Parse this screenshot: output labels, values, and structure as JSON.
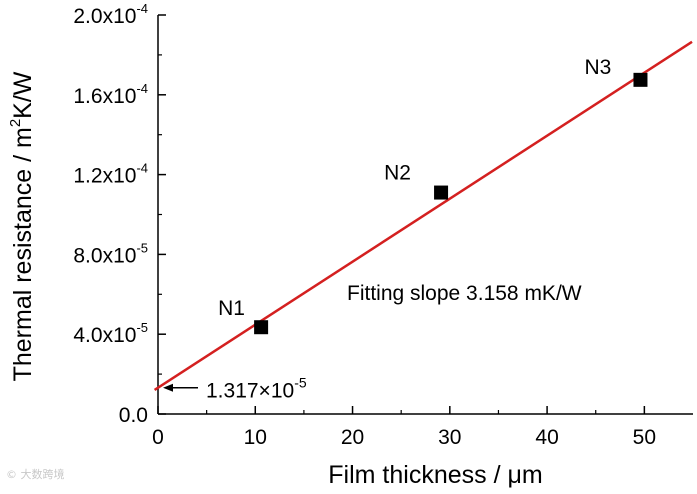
{
  "chart_data": {
    "type": "scatter",
    "xlabel": "Film thickness / μm",
    "ylabel_parts": {
      "prefix": "Thermal resistance / m",
      "sup": "2",
      "suffix": "K/W"
    },
    "xlim": [
      0,
      55
    ],
    "ylim": [
      0,
      0.0002
    ],
    "x_ticks": [
      {
        "value": 0,
        "label": "0"
      },
      {
        "value": 10,
        "label": "10"
      },
      {
        "value": 20,
        "label": "20"
      },
      {
        "value": 30,
        "label": "30"
      },
      {
        "value": 40,
        "label": "40"
      },
      {
        "value": 50,
        "label": "50"
      }
    ],
    "y_ticks": [
      {
        "value": 0,
        "base": "0.0",
        "exp": ""
      },
      {
        "value": 4e-05,
        "base": "4.0x10",
        "exp": "-5"
      },
      {
        "value": 8e-05,
        "base": "8.0x10",
        "exp": "-5"
      },
      {
        "value": 0.00012,
        "base": "1.2x10",
        "exp": "-4"
      },
      {
        "value": 0.00016,
        "base": "1.6x10",
        "exp": "-4"
      },
      {
        "value": 0.0002,
        "base": "2.0x10",
        "exp": "-4"
      }
    ],
    "points": [
      {
        "label": "N1",
        "x": 10.6,
        "y": 4.35e-05
      },
      {
        "label": "N2",
        "x": 29.1,
        "y": 0.000111
      },
      {
        "label": "N3",
        "x": 49.6,
        "y": 0.0001675
      }
    ],
    "fit": {
      "slope": 3.158e-06,
      "intercept": 1.317e-05,
      "color": "#d42020",
      "annotation": "Fitting slope 3.158 mK/W"
    },
    "intercept_label": {
      "base": "1.317×10",
      "exp": "-5"
    },
    "marker_color": "#000000",
    "axis_color": "#000000"
  },
  "watermark": "© 大数跨境"
}
